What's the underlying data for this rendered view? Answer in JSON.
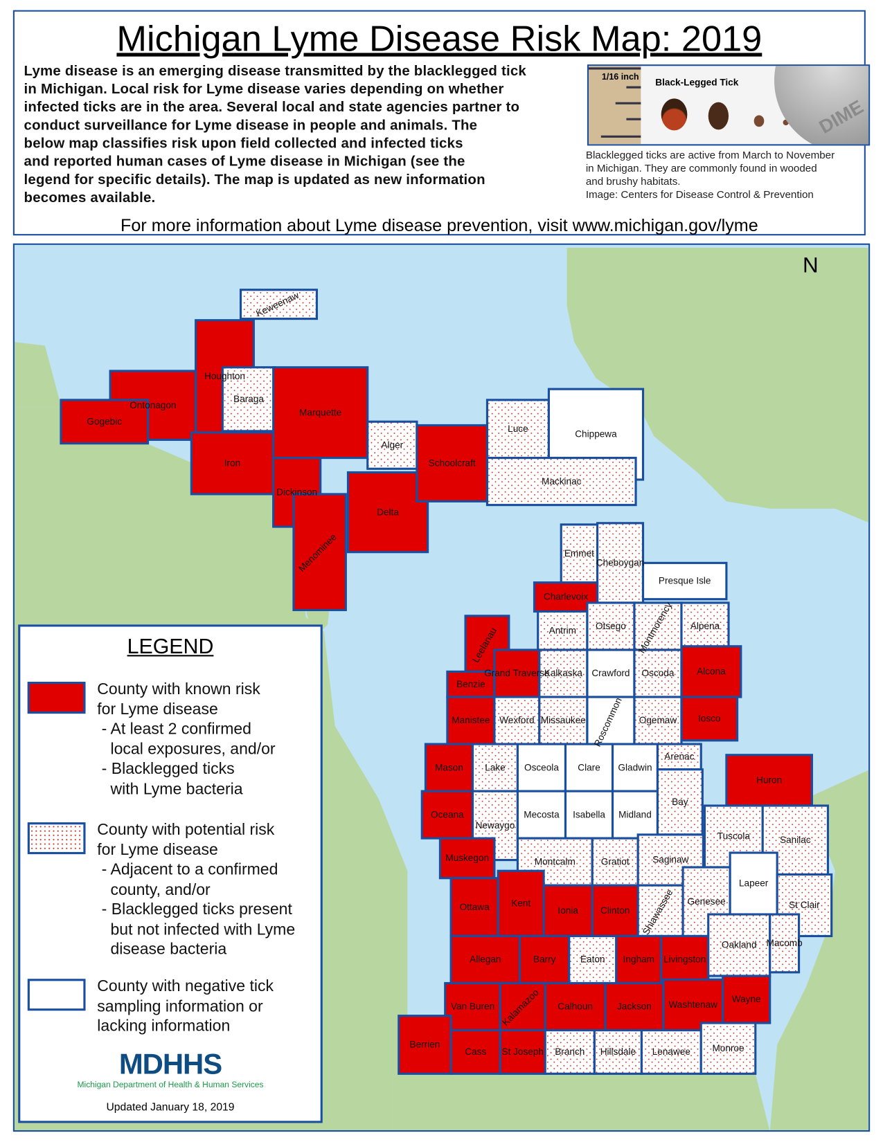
{
  "title": "Michigan Lyme Disease Risk Map: 2019",
  "intro_lines": [
    "Lyme disease is an emerging disease transmitted by the blacklegged tick",
    "in Michigan. Local risk for Lyme disease varies depending on whether",
    "infected ticks are in the area.  Several local and state agencies partner to",
    "conduct surveillance for Lyme disease in people and animals.  The",
    "below map classifies risk upon field collected and infected ticks",
    "and reported human cases of Lyme disease in Michigan (see the",
    "legend for specific details).  The map is updated as new information",
    "becomes available."
  ],
  "tick_image": {
    "ruler_label": "1/16 inch",
    "title": "Black-Legged Tick",
    "coin_text": "DIME"
  },
  "caption_lines": [
    "Blacklegged ticks are active from March to November",
    "in Michigan.  They are commonly found in wooded",
    "and brushy habitats.",
    "Image: Centers for Disease Control & Prevention"
  ],
  "more_info": "For more information about Lyme disease prevention, visit www.michigan.gov/lyme",
  "north_label": "N",
  "colors": {
    "known": "#e00000",
    "potential_dots": "#c0392b",
    "border": "#1a4fa0",
    "water": "#bfe3f5",
    "land": "#b8d6a0"
  },
  "legend": {
    "title": "LEGEND",
    "items": [
      {
        "type": "known",
        "text": "County with known risk\nfor Lyme disease\n - At least 2 confirmed\n   local exposures, and/or\n - Blacklegged ticks\n   with Lyme bacteria"
      },
      {
        "type": "potential",
        "text": "County with potential risk\nfor Lyme disease\n - Adjacent to a confirmed\n   county, and/or\n - Blacklegged ticks present\n   but not infected with Lyme\n   disease bacteria"
      },
      {
        "type": "negative",
        "text": "County with negative tick\nsampling information or\nlacking information"
      }
    ],
    "logo": "MDHHS",
    "logo_sub": "Michigan Department of Health & Human Services",
    "updated": "Updated January 18, 2019"
  },
  "counties": [
    {
      "name": "Keweenaw",
      "risk": "potential"
    },
    {
      "name": "Houghton",
      "risk": "known"
    },
    {
      "name": "Ontonagon",
      "risk": "known"
    },
    {
      "name": "Gogebic",
      "risk": "known"
    },
    {
      "name": "Baraga",
      "risk": "potential"
    },
    {
      "name": "Iron",
      "risk": "known"
    },
    {
      "name": "Marquette",
      "risk": "known"
    },
    {
      "name": "Dickinson",
      "risk": "known"
    },
    {
      "name": "Menominee",
      "risk": "known"
    },
    {
      "name": "Delta",
      "risk": "known"
    },
    {
      "name": "Alger",
      "risk": "potential"
    },
    {
      "name": "Schoolcraft",
      "risk": "known"
    },
    {
      "name": "Luce",
      "risk": "potential"
    },
    {
      "name": "Chippewa",
      "risk": "negative"
    },
    {
      "name": "Mackinac",
      "risk": "potential"
    },
    {
      "name": "Emmet",
      "risk": "potential"
    },
    {
      "name": "Cheboygan",
      "risk": "potential"
    },
    {
      "name": "Presque Isle",
      "risk": "negative"
    },
    {
      "name": "Charlevoix",
      "risk": "known"
    },
    {
      "name": "Antrim",
      "risk": "potential"
    },
    {
      "name": "Otsego",
      "risk": "potential"
    },
    {
      "name": "Montmorency",
      "risk": "potential"
    },
    {
      "name": "Alpena",
      "risk": "potential"
    },
    {
      "name": "Leelanau",
      "risk": "known"
    },
    {
      "name": "Benzie",
      "risk": "known"
    },
    {
      "name": "Grand Traverse",
      "risk": "known"
    },
    {
      "name": "Kalkaska",
      "risk": "potential"
    },
    {
      "name": "Crawford",
      "risk": "negative"
    },
    {
      "name": "Oscoda",
      "risk": "potential"
    },
    {
      "name": "Alcona",
      "risk": "known"
    },
    {
      "name": "Manistee",
      "risk": "known"
    },
    {
      "name": "Wexford",
      "risk": "potential"
    },
    {
      "name": "Missaukee",
      "risk": "potential"
    },
    {
      "name": "Roscommon",
      "risk": "negative"
    },
    {
      "name": "Ogemaw",
      "risk": "potential"
    },
    {
      "name": "Iosco",
      "risk": "known"
    },
    {
      "name": "Mason",
      "risk": "known"
    },
    {
      "name": "Lake",
      "risk": "potential"
    },
    {
      "name": "Osceola",
      "risk": "negative"
    },
    {
      "name": "Clare",
      "risk": "negative"
    },
    {
      "name": "Gladwin",
      "risk": "negative"
    },
    {
      "name": "Arenac",
      "risk": "potential"
    },
    {
      "name": "Oceana",
      "risk": "known"
    },
    {
      "name": "Newaygo",
      "risk": "potential"
    },
    {
      "name": "Mecosta",
      "risk": "negative"
    },
    {
      "name": "Isabella",
      "risk": "negative"
    },
    {
      "name": "Midland",
      "risk": "negative"
    },
    {
      "name": "Bay",
      "risk": "potential"
    },
    {
      "name": "Huron",
      "risk": "known"
    },
    {
      "name": "Tuscola",
      "risk": "potential"
    },
    {
      "name": "Sanilac",
      "risk": "potential"
    },
    {
      "name": "Muskegon",
      "risk": "known"
    },
    {
      "name": "Montcalm",
      "risk": "potential"
    },
    {
      "name": "Gratiot",
      "risk": "potential"
    },
    {
      "name": "Saginaw",
      "risk": "potential"
    },
    {
      "name": "Ottawa",
      "risk": "known"
    },
    {
      "name": "Kent",
      "risk": "known"
    },
    {
      "name": "Ionia",
      "risk": "known"
    },
    {
      "name": "Clinton",
      "risk": "known"
    },
    {
      "name": "Shiawassee",
      "risk": "potential"
    },
    {
      "name": "Genesee",
      "risk": "potential"
    },
    {
      "name": "Lapeer",
      "risk": "negative"
    },
    {
      "name": "St Clair",
      "risk": "potential"
    },
    {
      "name": "Allegan",
      "risk": "known"
    },
    {
      "name": "Barry",
      "risk": "known"
    },
    {
      "name": "Eaton",
      "risk": "potential"
    },
    {
      "name": "Ingham",
      "risk": "known"
    },
    {
      "name": "Livingston",
      "risk": "known"
    },
    {
      "name": "Oakland",
      "risk": "potential"
    },
    {
      "name": "Macomb",
      "risk": "potential"
    },
    {
      "name": "Van Buren",
      "risk": "known"
    },
    {
      "name": "Kalamazoo",
      "risk": "known"
    },
    {
      "name": "Calhoun",
      "risk": "known"
    },
    {
      "name": "Jackson",
      "risk": "known"
    },
    {
      "name": "Washtenaw",
      "risk": "known"
    },
    {
      "name": "Wayne",
      "risk": "known"
    },
    {
      "name": "Berrien",
      "risk": "known"
    },
    {
      "name": "Cass",
      "risk": "known"
    },
    {
      "name": "St Joseph",
      "risk": "known"
    },
    {
      "name": "Branch",
      "risk": "potential"
    },
    {
      "name": "Hillsdale",
      "risk": "potential"
    },
    {
      "name": "Lenawee",
      "risk": "potential"
    },
    {
      "name": "Monroe",
      "risk": "potential"
    }
  ]
}
